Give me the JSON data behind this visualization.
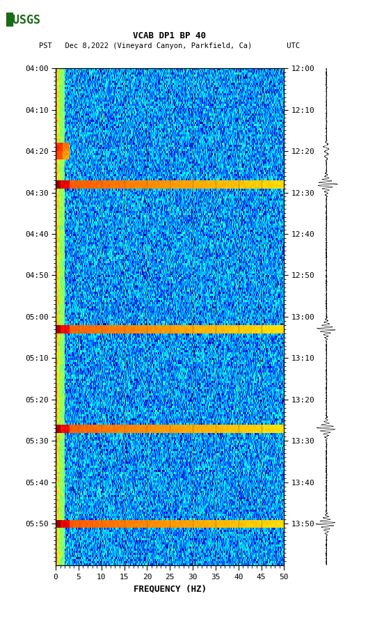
{
  "title_line1": "VCAB DP1 BP 40",
  "title_line2": "PST   Dec 8,2022 (Vineyard Canyon, Parkfield, Ca)        UTC",
  "xlabel": "FREQUENCY (HZ)",
  "freq_min": 0,
  "freq_max": 50,
  "freq_ticks": [
    0,
    5,
    10,
    15,
    20,
    25,
    30,
    35,
    40,
    45,
    50
  ],
  "ytick_labels_left": [
    "04:00",
    "04:10",
    "04:20",
    "04:30",
    "04:40",
    "04:50",
    "05:00",
    "05:10",
    "05:20",
    "05:30",
    "05:40",
    "05:50"
  ],
  "ytick_labels_right": [
    "12:00",
    "12:10",
    "12:20",
    "12:30",
    "12:40",
    "12:50",
    "13:00",
    "13:10",
    "13:20",
    "13:30",
    "13:40",
    "13:50"
  ],
  "n_time_bins": 240,
  "n_freq_bins": 500,
  "background_color": "#ffffff",
  "vertical_lines_freq": [
    5,
    10,
    15,
    20,
    25,
    30,
    35,
    40,
    45
  ],
  "vertical_line_color": "#8B6914",
  "fig_width": 5.52,
  "fig_height": 8.92,
  "dpi": 100,
  "event_rows": [
    [
      54,
      58,
      0.95
    ],
    [
      124,
      128,
      0.88
    ],
    [
      172,
      176,
      0.9
    ],
    [
      218,
      222,
      0.95
    ]
  ],
  "partial_event_rows": [
    [
      36,
      40,
      0.5
    ],
    [
      40,
      44,
      0.35
    ]
  ],
  "low_freq_bins": 20,
  "usgs_color": "#1a6b1a"
}
